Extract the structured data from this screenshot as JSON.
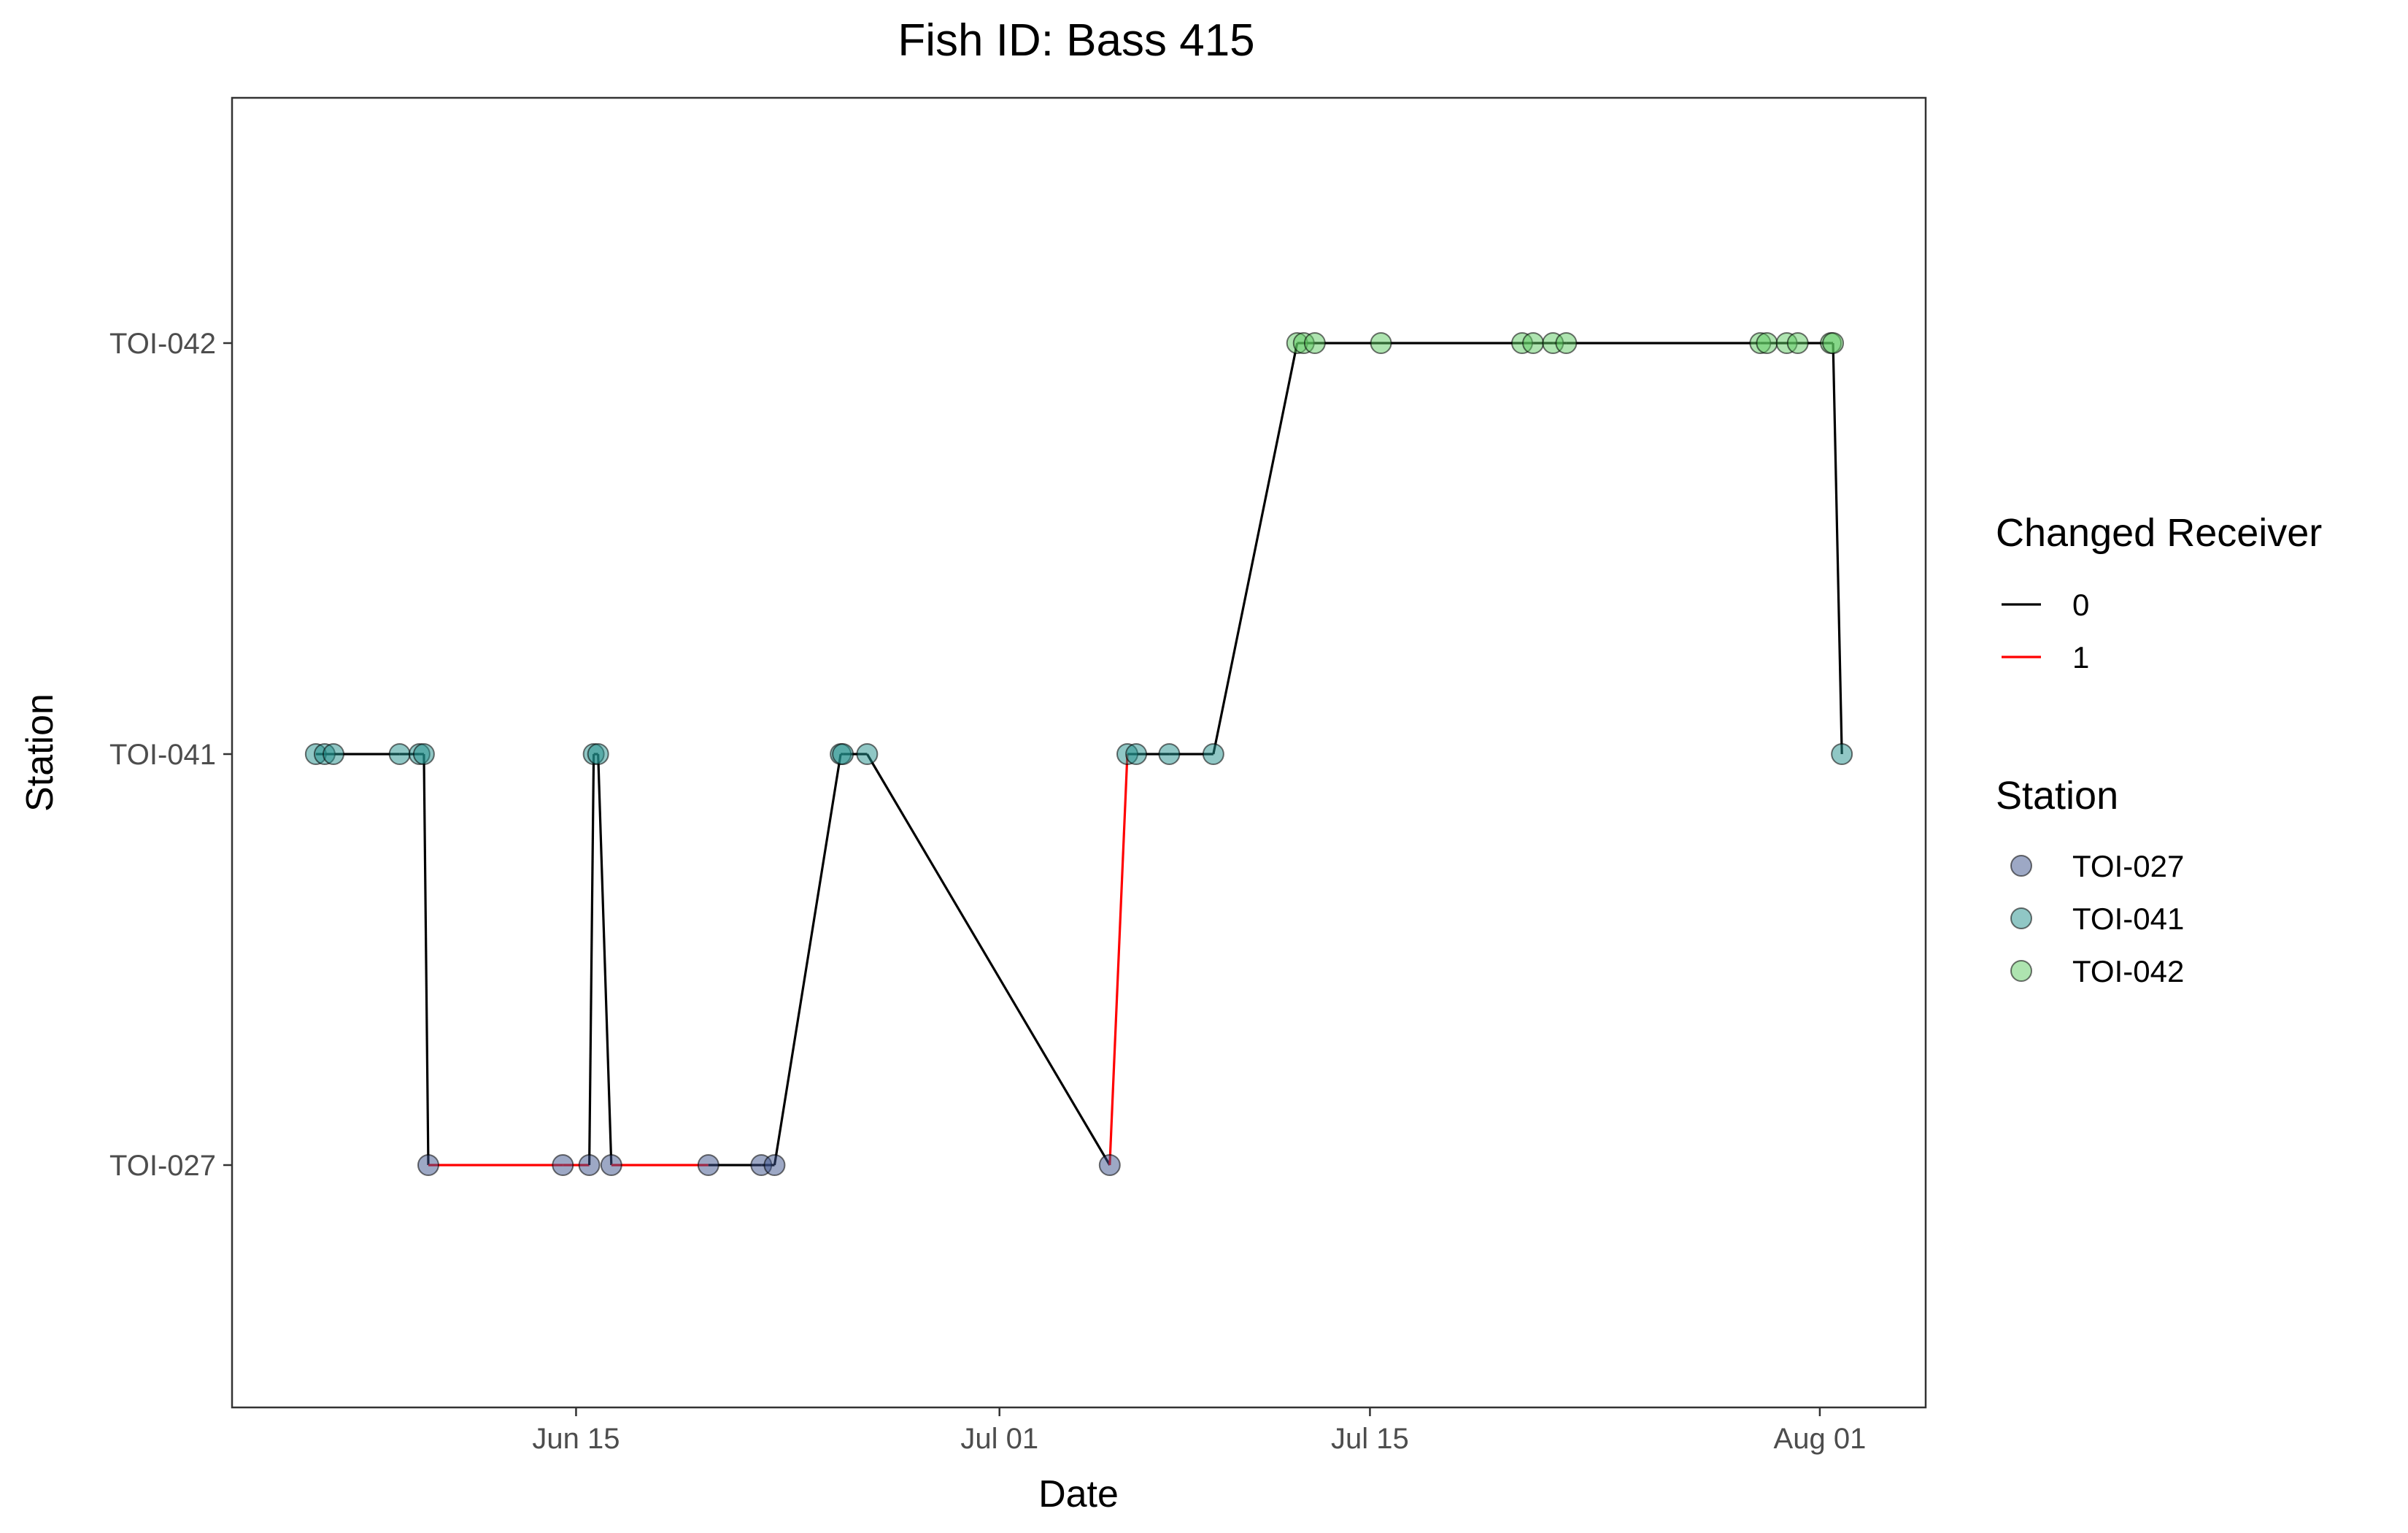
{
  "chart_data": {
    "type": "scatter",
    "title": "Fish ID: Bass 415",
    "xlabel": "Date",
    "ylabel": "Station",
    "x_ticks": [
      "Jun 15",
      "Jul 01",
      "Jul 15",
      "Aug 01"
    ],
    "y_categories": [
      "TOI-027",
      "TOI-041",
      "TOI-042"
    ],
    "xlim": [
      "2022-06-02",
      "2022-08-05"
    ],
    "grid": false,
    "legend_position": "right",
    "legends": {
      "line": {
        "title": "Changed Receiver",
        "entries": [
          {
            "label": "0",
            "color": "#000000"
          },
          {
            "label": "1",
            "color": "#ff0000"
          }
        ]
      },
      "point": {
        "title": "Station",
        "entries": [
          {
            "label": "TOI-027",
            "color": "#3b528b"
          },
          {
            "label": "TOI-041",
            "color": "#21908c"
          },
          {
            "label": "TOI-042",
            "color": "#5ec962"
          }
        ]
      }
    },
    "detections": [
      {
        "x": "2022-06-05 04:00",
        "station": "TOI-041",
        "changed": 0
      },
      {
        "x": "2022-06-05 12:00",
        "station": "TOI-041",
        "changed": 0
      },
      {
        "x": "2022-06-05 20:00",
        "station": "TOI-041",
        "changed": 0
      },
      {
        "x": "2022-06-08 08:00",
        "station": "TOI-041",
        "changed": 0
      },
      {
        "x": "2022-06-09 02:00",
        "station": "TOI-041",
        "changed": 0
      },
      {
        "x": "2022-06-09 06:00",
        "station": "TOI-041",
        "changed": 0
      },
      {
        "x": "2022-06-09 10:00",
        "station": "TOI-027",
        "changed": 0
      },
      {
        "x": "2022-06-14 12:00",
        "station": "TOI-027",
        "changed": 1
      },
      {
        "x": "2022-06-15 12:00",
        "station": "TOI-027",
        "changed": 1
      },
      {
        "x": "2022-06-15 16:00",
        "station": "TOI-041",
        "changed": 0
      },
      {
        "x": "2022-06-15 20:00",
        "station": "TOI-041",
        "changed": 0
      },
      {
        "x": "2022-06-16 08:00",
        "station": "TOI-027",
        "changed": 0
      },
      {
        "x": "2022-06-20 00:00",
        "station": "TOI-027",
        "changed": 1
      },
      {
        "x": "2022-06-22 00:00",
        "station": "TOI-027",
        "changed": 0
      },
      {
        "x": "2022-06-22 12:00",
        "station": "TOI-027",
        "changed": 0
      },
      {
        "x": "2022-06-25 00:00",
        "station": "TOI-041",
        "changed": 0
      },
      {
        "x": "2022-06-25 02:00",
        "station": "TOI-041",
        "changed": 0
      },
      {
        "x": "2022-06-26 00:00",
        "station": "TOI-041",
        "changed": 0
      },
      {
        "x": "2022-07-05 04:00",
        "station": "TOI-027",
        "changed": 0
      },
      {
        "x": "2022-07-05 20:00",
        "station": "TOI-041",
        "changed": 1
      },
      {
        "x": "2022-07-06 04:00",
        "station": "TOI-041",
        "changed": 0
      },
      {
        "x": "2022-07-07 10:00",
        "station": "TOI-041",
        "changed": 0
      },
      {
        "x": "2022-07-09 02:00",
        "station": "TOI-041",
        "changed": 0
      },
      {
        "x": "2022-07-12 06:00",
        "station": "TOI-042",
        "changed": 0
      },
      {
        "x": "2022-07-12 12:00",
        "station": "TOI-042",
        "changed": 0
      },
      {
        "x": "2022-07-12 22:00",
        "station": "TOI-042",
        "changed": 0
      },
      {
        "x": "2022-07-15 10:00",
        "station": "TOI-042",
        "changed": 0
      },
      {
        "x": "2022-07-20 18:00",
        "station": "TOI-042",
        "changed": 0
      },
      {
        "x": "2022-07-21 04:00",
        "station": "TOI-042",
        "changed": 0
      },
      {
        "x": "2022-07-21 22:00",
        "station": "TOI-042",
        "changed": 0
      },
      {
        "x": "2022-07-22 10:00",
        "station": "TOI-042",
        "changed": 0
      },
      {
        "x": "2022-07-29 18:00",
        "station": "TOI-042",
        "changed": 0
      },
      {
        "x": "2022-07-30 00:00",
        "station": "TOI-042",
        "changed": 0
      },
      {
        "x": "2022-07-30 18:00",
        "station": "TOI-042",
        "changed": 0
      },
      {
        "x": "2022-07-31 04:00",
        "station": "TOI-042",
        "changed": 0
      },
      {
        "x": "2022-08-01 10:00",
        "station": "TOI-042",
        "changed": 0
      },
      {
        "x": "2022-08-01 12:00",
        "station": "TOI-042",
        "changed": 0
      },
      {
        "x": "2022-08-01 20:00",
        "station": "TOI-041",
        "changed": 0
      }
    ]
  }
}
